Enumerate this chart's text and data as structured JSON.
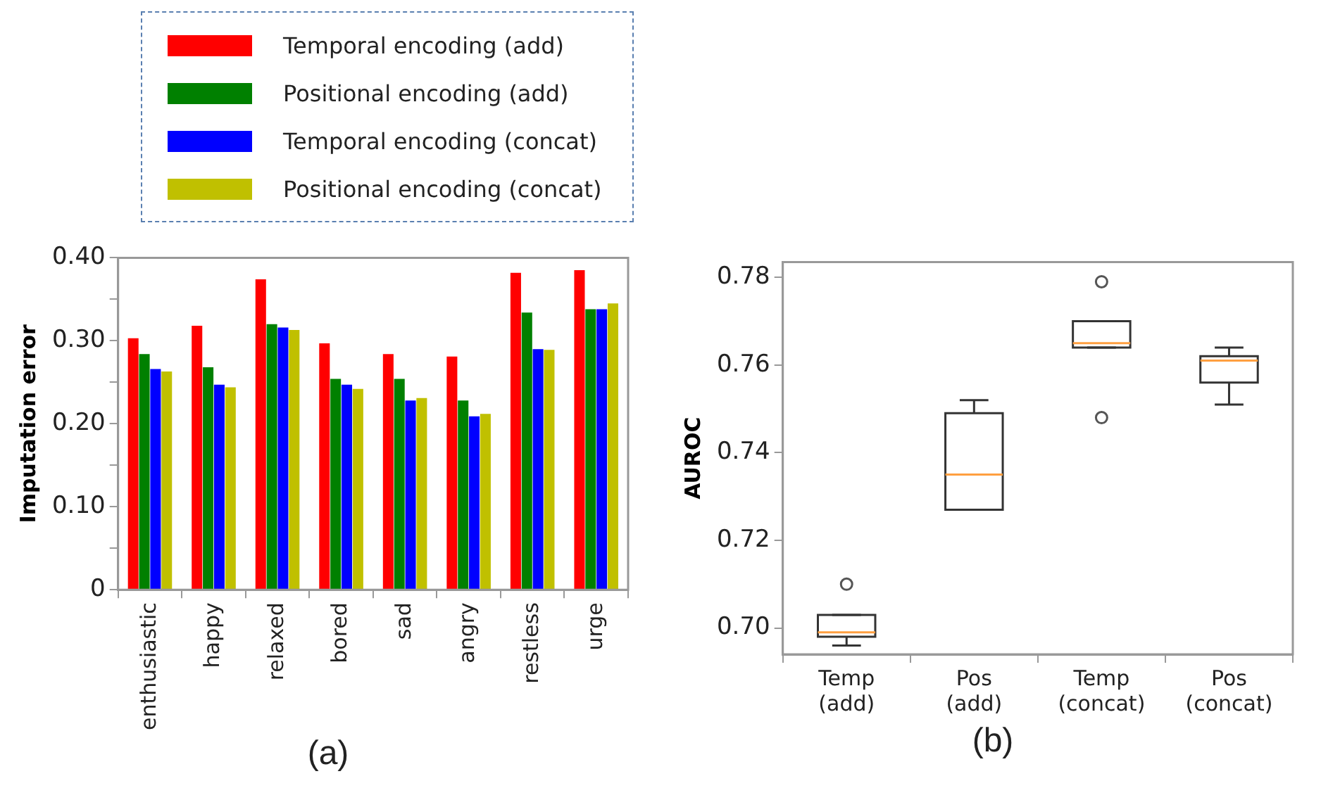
{
  "chart_data": [
    {
      "type": "bar",
      "ylabel": "Imputation error",
      "categories": [
        "enthusiastic",
        "happy",
        "relaxed",
        "bored",
        "sad",
        "angry",
        "restless",
        "urge"
      ],
      "series": [
        {
          "name": "Temporal encoding (add)",
          "color": "#ff0000",
          "values": [
            0.303,
            0.318,
            0.374,
            0.297,
            0.284,
            0.281,
            0.382,
            0.385
          ]
        },
        {
          "name": "Positional encoding (add)",
          "color": "#008000",
          "values": [
            0.284,
            0.268,
            0.32,
            0.254,
            0.254,
            0.228,
            0.334,
            0.338
          ]
        },
        {
          "name": "Temporal encoding (concat)",
          "color": "#0000ff",
          "values": [
            0.266,
            0.247,
            0.316,
            0.247,
            0.228,
            0.209,
            0.29,
            0.338
          ]
        },
        {
          "name": "Positional encoding (concat)",
          "color": "#c0c000",
          "values": [
            0.263,
            0.244,
            0.313,
            0.242,
            0.231,
            0.212,
            0.289,
            0.345
          ]
        }
      ],
      "ylim": [
        0,
        0.4
      ],
      "yticks": [
        0,
        {
          "value": 0.05,
          "label": null
        },
        {
          "value": 0.1,
          "label": "0.10"
        },
        {
          "value": 0.15,
          "label": null
        },
        {
          "value": 0.2,
          "label": "0.20"
        },
        {
          "value": 0.25,
          "label": null
        },
        {
          "value": 0.3,
          "label": "0.30"
        },
        {
          "value": 0.35,
          "label": null
        },
        {
          "value": 0.4,
          "label": "0.40"
        }
      ],
      "grid": false,
      "legend": "top",
      "annotations": [
        "(a)"
      ]
    },
    {
      "type": "box",
      "ylabel": "AUROC",
      "categories": [
        "Temp (add)",
        "Pos (add)",
        "Temp (concat)",
        "Pos (concat)"
      ],
      "boxes": [
        {
          "low": 0.696,
          "q1": 0.698,
          "median": 0.699,
          "q3": 0.703,
          "high": 0.703,
          "outliers": [
            0.71
          ]
        },
        {
          "low": 0.727,
          "q1": 0.727,
          "median": 0.735,
          "q3": 0.749,
          "high": 0.752
        },
        {
          "low": 0.764,
          "q1": 0.764,
          "median": 0.765,
          "q3": 0.77,
          "high": 0.77,
          "outliers": [
            0.779,
            0.748
          ]
        },
        {
          "low": 0.751,
          "q1": 0.756,
          "median": 0.761,
          "q3": 0.762,
          "high": 0.764
        }
      ],
      "ylim": [
        0.694,
        0.7835
      ],
      "yticks": [
        {
          "value": 0.7,
          "label": "0.70"
        },
        0.72,
        0.74,
        0.76,
        0.78
      ],
      "grid": false,
      "annotations": [
        "(b)"
      ]
    }
  ]
}
